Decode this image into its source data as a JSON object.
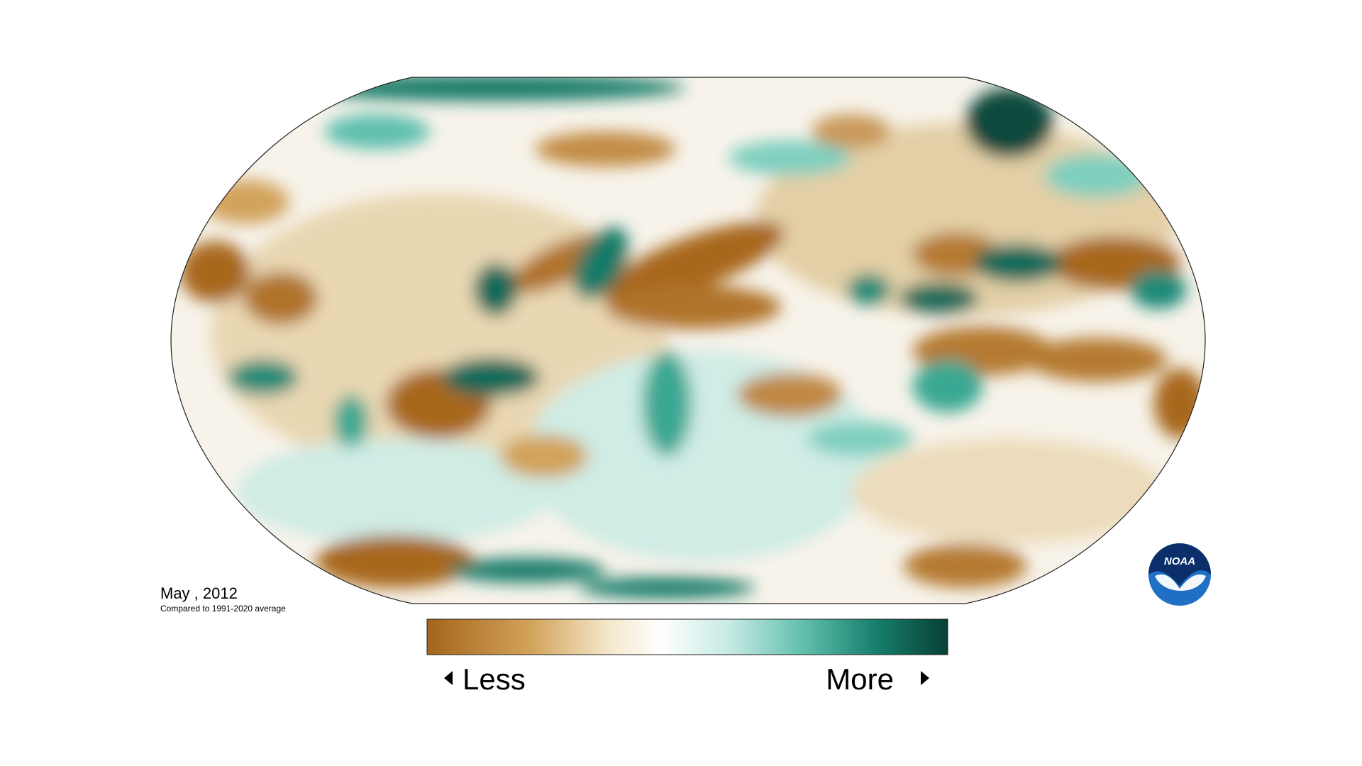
{
  "title": "May , 2012",
  "subtitle": "Compared to 1991-2020 average",
  "legend": {
    "low": "Less",
    "high": "More"
  },
  "logo": "NOAA"
}
